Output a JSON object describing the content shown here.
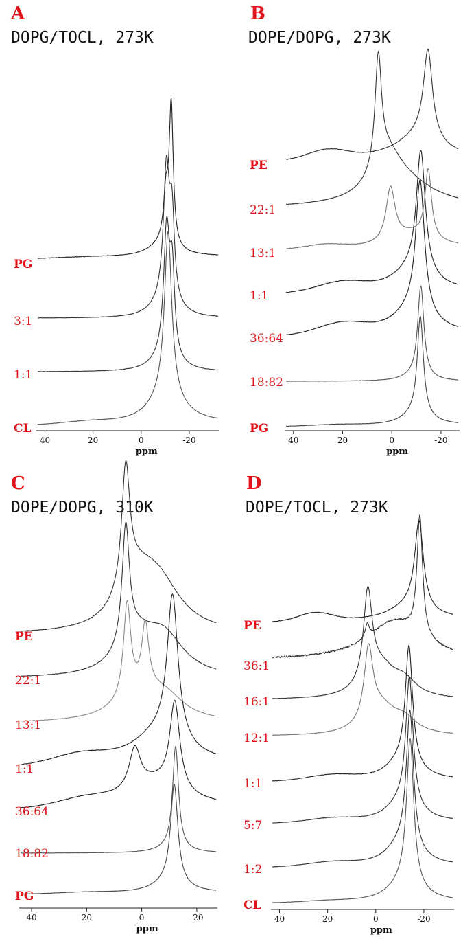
{
  "chart_data": [
    {
      "type": "line",
      "panel": "A",
      "title": "DOPG/TOCL, 273K",
      "xlabel": "ppm",
      "xlim": [
        43,
        -32
      ],
      "x_reversed": true,
      "xticks": [
        40,
        20,
        0,
        -20
      ],
      "series": [
        {
          "name": "PG",
          "bold": true,
          "color": "#222222",
          "noise": 0.7,
          "base": 0.1,
          "slope": 0.05,
          "humps": [
            [
              22,
              12,
              0.02
            ]
          ],
          "peaks": [
            [
              -10.3,
              1.2,
              0.95
            ],
            [
              -12.5,
              1.0,
              2.8
            ],
            [
              -9,
              7,
              0.25
            ]
          ]
        },
        {
          "name": "3:1",
          "bold": false,
          "color": "#333333",
          "noise": 0.6,
          "base": 0.05,
          "slope": 0.0,
          "humps": [],
          "peaks": [
            [
              -10.5,
              1.5,
              2.6
            ],
            [
              -12.8,
              1.2,
              1.6
            ],
            [
              -10,
              6,
              0.35
            ]
          ]
        },
        {
          "name": "1:1",
          "bold": false,
          "color": "#333333",
          "noise": 0.6,
          "base": 0.05,
          "slope": 0.0,
          "humps": [],
          "peaks": [
            [
              -10.6,
              1.5,
              2.5
            ],
            [
              -12.9,
              1.2,
              1.6
            ],
            [
              -10,
              6,
              0.3
            ]
          ]
        },
        {
          "name": "CL",
          "bold": true,
          "color": "#555555",
          "noise": 0.5,
          "base": 0.05,
          "slope": 0.05,
          "humps": [
            [
              22,
              10,
              0.05
            ]
          ],
          "peaks": [
            [
              -11.2,
              1.8,
              3.3
            ],
            [
              -10.5,
              8,
              0.6
            ]
          ]
        }
      ]
    },
    {
      "type": "line",
      "panel": "B",
      "title": "DOPE/DOPG, 273K",
      "xlabel": "ppm",
      "xlim": [
        43,
        -27
      ],
      "x_reversed": true,
      "xticks": [
        40,
        20,
        0,
        -20
      ],
      "series": [
        {
          "name": "PE",
          "bold": true,
          "color": "#333333",
          "noise": 0.8,
          "base": 0.1,
          "slope": 0.06,
          "humps": [
            [
              26,
              8,
              0.35
            ]
          ],
          "peaks": [
            [
              -14.7,
              2.2,
              3.2
            ],
            [
              -12,
              9,
              0.6
            ],
            [
              -8,
              18,
              0.35
            ]
          ]
        },
        {
          "name": "22:1",
          "bold": false,
          "color": "#333333",
          "noise": 0.8,
          "base": 0.05,
          "slope": 0.0,
          "humps": [],
          "peaks": [
            [
              5.5,
              1.6,
              4.0
            ],
            [
              2,
              7,
              1.3
            ],
            [
              -4,
              16,
              0.9
            ]
          ]
        },
        {
          "name": "13:1",
          "bold": false,
          "color": "#777777",
          "noise": 0.8,
          "base": 0.1,
          "slope": 0.1,
          "humps": [
            [
              27,
              8,
              0.15
            ]
          ],
          "peaks": [
            [
              0.5,
              2.2,
              1.95
            ],
            [
              -14.8,
              1.6,
              2.5
            ],
            [
              -8,
              10,
              0.5
            ]
          ]
        },
        {
          "name": "1:1",
          "bold": false,
          "color": "#222222",
          "noise": 0.8,
          "base": 0.05,
          "slope": 0.1,
          "humps": [
            [
              20,
              10,
              0.35
            ]
          ],
          "peaks": [
            [
              -11.8,
              2.2,
              4.5
            ],
            [
              -8,
              10,
              0.75
            ]
          ]
        },
        {
          "name": "36:64",
          "bold": false,
          "color": "#222222",
          "noise": 0.8,
          "base": 0.05,
          "slope": 0.1,
          "humps": [
            [
              20,
              10,
              0.4
            ]
          ],
          "peaks": [
            [
              -11.5,
              2.2,
              4.9
            ],
            [
              -8,
              10,
              0.8
            ]
          ]
        },
        {
          "name": "18:82",
          "bold": false,
          "color": "#555555",
          "noise": 0.5,
          "base": 0.02,
          "slope": 0.0,
          "humps": [],
          "peaks": [
            [
              -11.8,
              1.5,
              3.3
            ],
            [
              -10,
              6,
              0.2
            ]
          ]
        },
        {
          "name": "PG",
          "bold": true,
          "color": "#444444",
          "noise": 0.5,
          "base": 0.05,
          "slope": 0.05,
          "humps": [
            [
              22,
              10,
              0.05
            ]
          ],
          "peaks": [
            [
              -11.6,
              1.5,
              3.6
            ],
            [
              -10,
              7,
              0.4
            ]
          ]
        }
      ]
    },
    {
      "type": "line",
      "panel": "C",
      "title": "DOPE/DOPG, 310K",
      "xlabel": "ppm",
      "xlim": [
        44,
        -27
      ],
      "x_reversed": true,
      "xticks": [
        40,
        20,
        0,
        -20
      ],
      "series": [
        {
          "name": "PE",
          "bold": true,
          "color": "#333333",
          "noise": 0.7,
          "base": 0.05,
          "slope": 0.0,
          "humps": [],
          "peaks": [
            [
              5.8,
              1.8,
              4.4
            ],
            [
              2,
              8,
              1.5
            ],
            [
              -6,
              10,
              1.7
            ]
          ]
        },
        {
          "name": "22:1",
          "bold": false,
          "color": "#333333",
          "noise": 0.7,
          "base": 0.05,
          "slope": 0.0,
          "humps": [],
          "peaks": [
            [
              5.8,
              1.6,
              4.3
            ],
            [
              2,
              8,
              1.2
            ],
            [
              -8,
              9,
              1.4
            ]
          ]
        },
        {
          "name": "13:1",
          "bold": false,
          "color": "#888888",
          "noise": 0.7,
          "base": 0.05,
          "slope": 0.0,
          "humps": [],
          "peaks": [
            [
              5.3,
              1.6,
              3.4
            ],
            [
              -1.3,
              1.5,
              2.3
            ],
            [
              0,
              11,
              1.0
            ],
            [
              -9,
              8,
              0.6
            ]
          ]
        },
        {
          "name": "1:1",
          "bold": false,
          "color": "#222222",
          "noise": 0.8,
          "base": 0.05,
          "slope": 0.1,
          "humps": [
            [
              22,
              10,
              0.35
            ]
          ],
          "peaks": [
            [
              -11.2,
              2.4,
              5.3
            ],
            [
              -6,
              12,
              1.1
            ]
          ]
        },
        {
          "name": "36:64",
          "bold": false,
          "color": "#222222",
          "noise": 0.8,
          "base": 0.05,
          "slope": 0.1,
          "humps": [
            [
              20,
              10,
              0.3
            ]
          ],
          "peaks": [
            [
              -12,
              2.2,
              3.2
            ],
            [
              2.5,
              2.5,
              1.5
            ],
            [
              -5,
              12,
              0.9
            ]
          ]
        },
        {
          "name": "18:82",
          "bold": false,
          "color": "#555555",
          "noise": 0.4,
          "base": 0.0,
          "slope": 0.0,
          "humps": [],
          "peaks": [
            [
              -12.3,
              1.3,
              3.7
            ],
            [
              -11,
              6,
              0.2
            ]
          ]
        },
        {
          "name": "PG",
          "bold": true,
          "color": "#444444",
          "noise": 0.4,
          "base": 0.05,
          "slope": 0.05,
          "humps": [
            [
              20,
              10,
              0.05
            ]
          ],
          "peaks": [
            [
              -11.8,
              1.6,
              3.6
            ],
            [
              -10,
              7,
              0.4
            ]
          ]
        }
      ]
    },
    {
      "type": "line",
      "panel": "D",
      "title": "DOPE/TOCL, 273K",
      "xlabel": "ppm",
      "xlim": [
        43,
        -32
      ],
      "x_reversed": true,
      "xticks": [
        40,
        20,
        0,
        -20
      ],
      "series": [
        {
          "name": "PE",
          "bold": true,
          "color": "#222222",
          "noise": 0.8,
          "base": 0.1,
          "slope": 0.1,
          "humps": [
            [
              25,
              7,
              0.3
            ]
          ],
          "peaks": [
            [
              -18,
              2.2,
              3.2
            ],
            [
              -14,
              10,
              0.5
            ]
          ]
        },
        {
          "name": "36:1",
          "bold": false,
          "color": "#333333",
          "noise": 2.2,
          "base": 0.2,
          "slope": 0.0,
          "humps": [],
          "peaks": [
            [
              -18.3,
              1.4,
              4.4
            ],
            [
              3.5,
              1.0,
              0.5
            ],
            [
              -8,
              14,
              1.4
            ]
          ]
        },
        {
          "name": "16:1",
          "bold": false,
          "color": "#333333",
          "noise": 0.6,
          "base": 0.05,
          "slope": 0.0,
          "humps": [],
          "peaks": [
            [
              3.3,
              2.2,
              3.3
            ],
            [
              -2,
              8,
              1.1
            ],
            [
              -12,
              6,
              0.5
            ]
          ]
        },
        {
          "name": "12:1",
          "bold": false,
          "color": "#777777",
          "noise": 0.6,
          "base": 0.05,
          "slope": 0.0,
          "humps": [],
          "peaks": [
            [
              3,
              2.2,
              2.6
            ],
            [
              -2,
              8,
              1.0
            ],
            [
              -12,
              6,
              0.45
            ]
          ]
        },
        {
          "name": "1:1",
          "bold": false,
          "color": "#222222",
          "noise": 0.6,
          "base": 0.05,
          "slope": 0.05,
          "humps": [
            [
              18,
              10,
              0.2
            ]
          ],
          "peaks": [
            [
              -13.8,
              1.8,
              4.3
            ],
            [
              -11,
              8,
              0.7
            ]
          ]
        },
        {
          "name": "5:7",
          "bold": false,
          "color": "#333333",
          "noise": 0.6,
          "base": 0.05,
          "slope": 0.05,
          "humps": [
            [
              18,
              10,
              0.15
            ]
          ],
          "peaks": [
            [
              -14,
              1.8,
              4.7
            ],
            [
              -11,
              8,
              0.7
            ]
          ]
        },
        {
          "name": "1:2",
          "bold": false,
          "color": "#333333",
          "noise": 0.6,
          "base": 0.05,
          "slope": 0.05,
          "humps": [
            [
              18,
              10,
              0.15
            ]
          ],
          "peaks": [
            [
              -14.2,
              1.8,
              5.0
            ],
            [
              -11,
              8,
              0.8
            ]
          ]
        },
        {
          "name": "CL",
          "bold": true,
          "color": "#555555",
          "noise": 0.4,
          "base": 0.05,
          "slope": 0.05,
          "humps": [
            [
              20,
              10,
              0.05
            ]
          ],
          "peaks": [
            [
              -14.3,
              1.8,
              5.3
            ],
            [
              -12,
              8,
              0.7
            ]
          ]
        }
      ]
    }
  ]
}
